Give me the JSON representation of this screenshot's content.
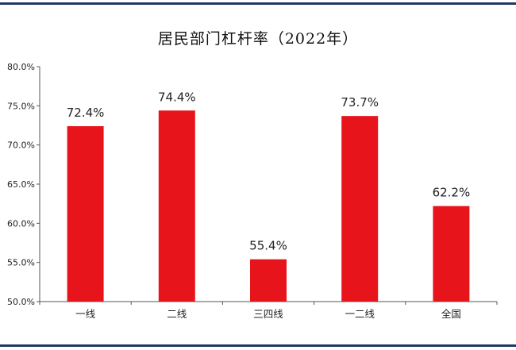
{
  "chart_data": {
    "type": "bar",
    "title": "居民部门杠杆率（2022年）",
    "xlabel": "",
    "ylabel": "",
    "categories": [
      "一线",
      "二线",
      "三四线",
      "一二线",
      "全国"
    ],
    "series": [
      {
        "values": [
          72.4,
          74.4,
          55.4,
          73.7,
          62.2
        ],
        "data_labels": [
          "72.4%",
          "74.4%",
          "55.4%",
          "73.7%",
          "62.2%"
        ]
      }
    ],
    "ylim": [
      50,
      80
    ],
    "yticks": [
      50,
      55,
      60,
      65,
      70,
      75,
      80
    ],
    "ytick_labels": [
      "50.0%",
      "55.0%",
      "60.0%",
      "65.0%",
      "70.0%",
      "75.0%",
      "80.0%"
    ],
    "grid": false,
    "legend": "none",
    "bar_color": "#e8141c",
    "frame_color": "#1f3864"
  }
}
